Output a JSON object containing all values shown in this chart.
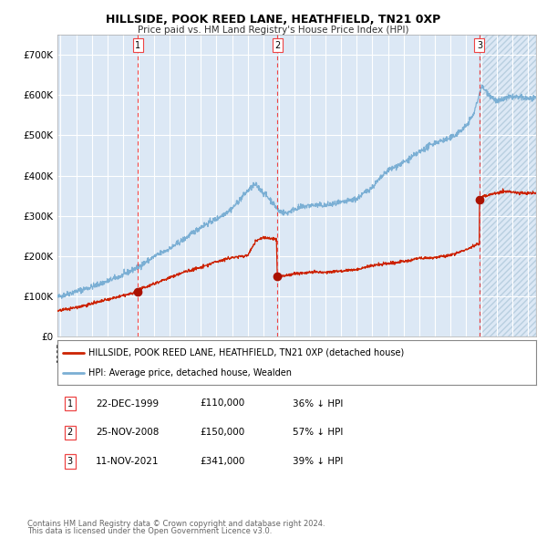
{
  "title": "HILLSIDE, POOK REED LANE, HEATHFIELD, TN21 0XP",
  "subtitle": "Price paid vs. HM Land Registry's House Price Index (HPI)",
  "background_color": "#ffffff",
  "plot_bg_color": "#dce8f5",
  "hatch_bg_color": "#dce8f5",
  "grid_color": "#ffffff",
  "hpi_color": "#7bafd4",
  "price_color": "#cc2200",
  "sale_marker_color": "#aa1100",
  "dashed_line_color": "#ee4444",
  "ylim": [
    0,
    750000
  ],
  "yticks": [
    0,
    100000,
    200000,
    300000,
    400000,
    500000,
    600000,
    700000
  ],
  "ytick_labels": [
    "£0",
    "£100K",
    "£200K",
    "£300K",
    "£400K",
    "£500K",
    "£600K",
    "£700K"
  ],
  "xstart": 1994.8,
  "xend": 2025.5,
  "sales": [
    {
      "date_str": "22-DEC-1999",
      "year": 1999.97,
      "price": 110000,
      "label": "1"
    },
    {
      "date_str": "25-NOV-2008",
      "year": 2008.9,
      "price": 150000,
      "label": "2"
    },
    {
      "date_str": "11-NOV-2021",
      "year": 2021.87,
      "price": 341000,
      "label": "3"
    }
  ],
  "sale_pct": [
    "36% ↓ HPI",
    "57% ↓ HPI",
    "39% ↓ HPI"
  ],
  "legend_label_price": "HILLSIDE, POOK REED LANE, HEATHFIELD, TN21 0XP (detached house)",
  "legend_label_hpi": "HPI: Average price, detached house, Wealden",
  "footer1": "Contains HM Land Registry data © Crown copyright and database right 2024.",
  "footer2": "This data is licensed under the Open Government Licence v3.0."
}
